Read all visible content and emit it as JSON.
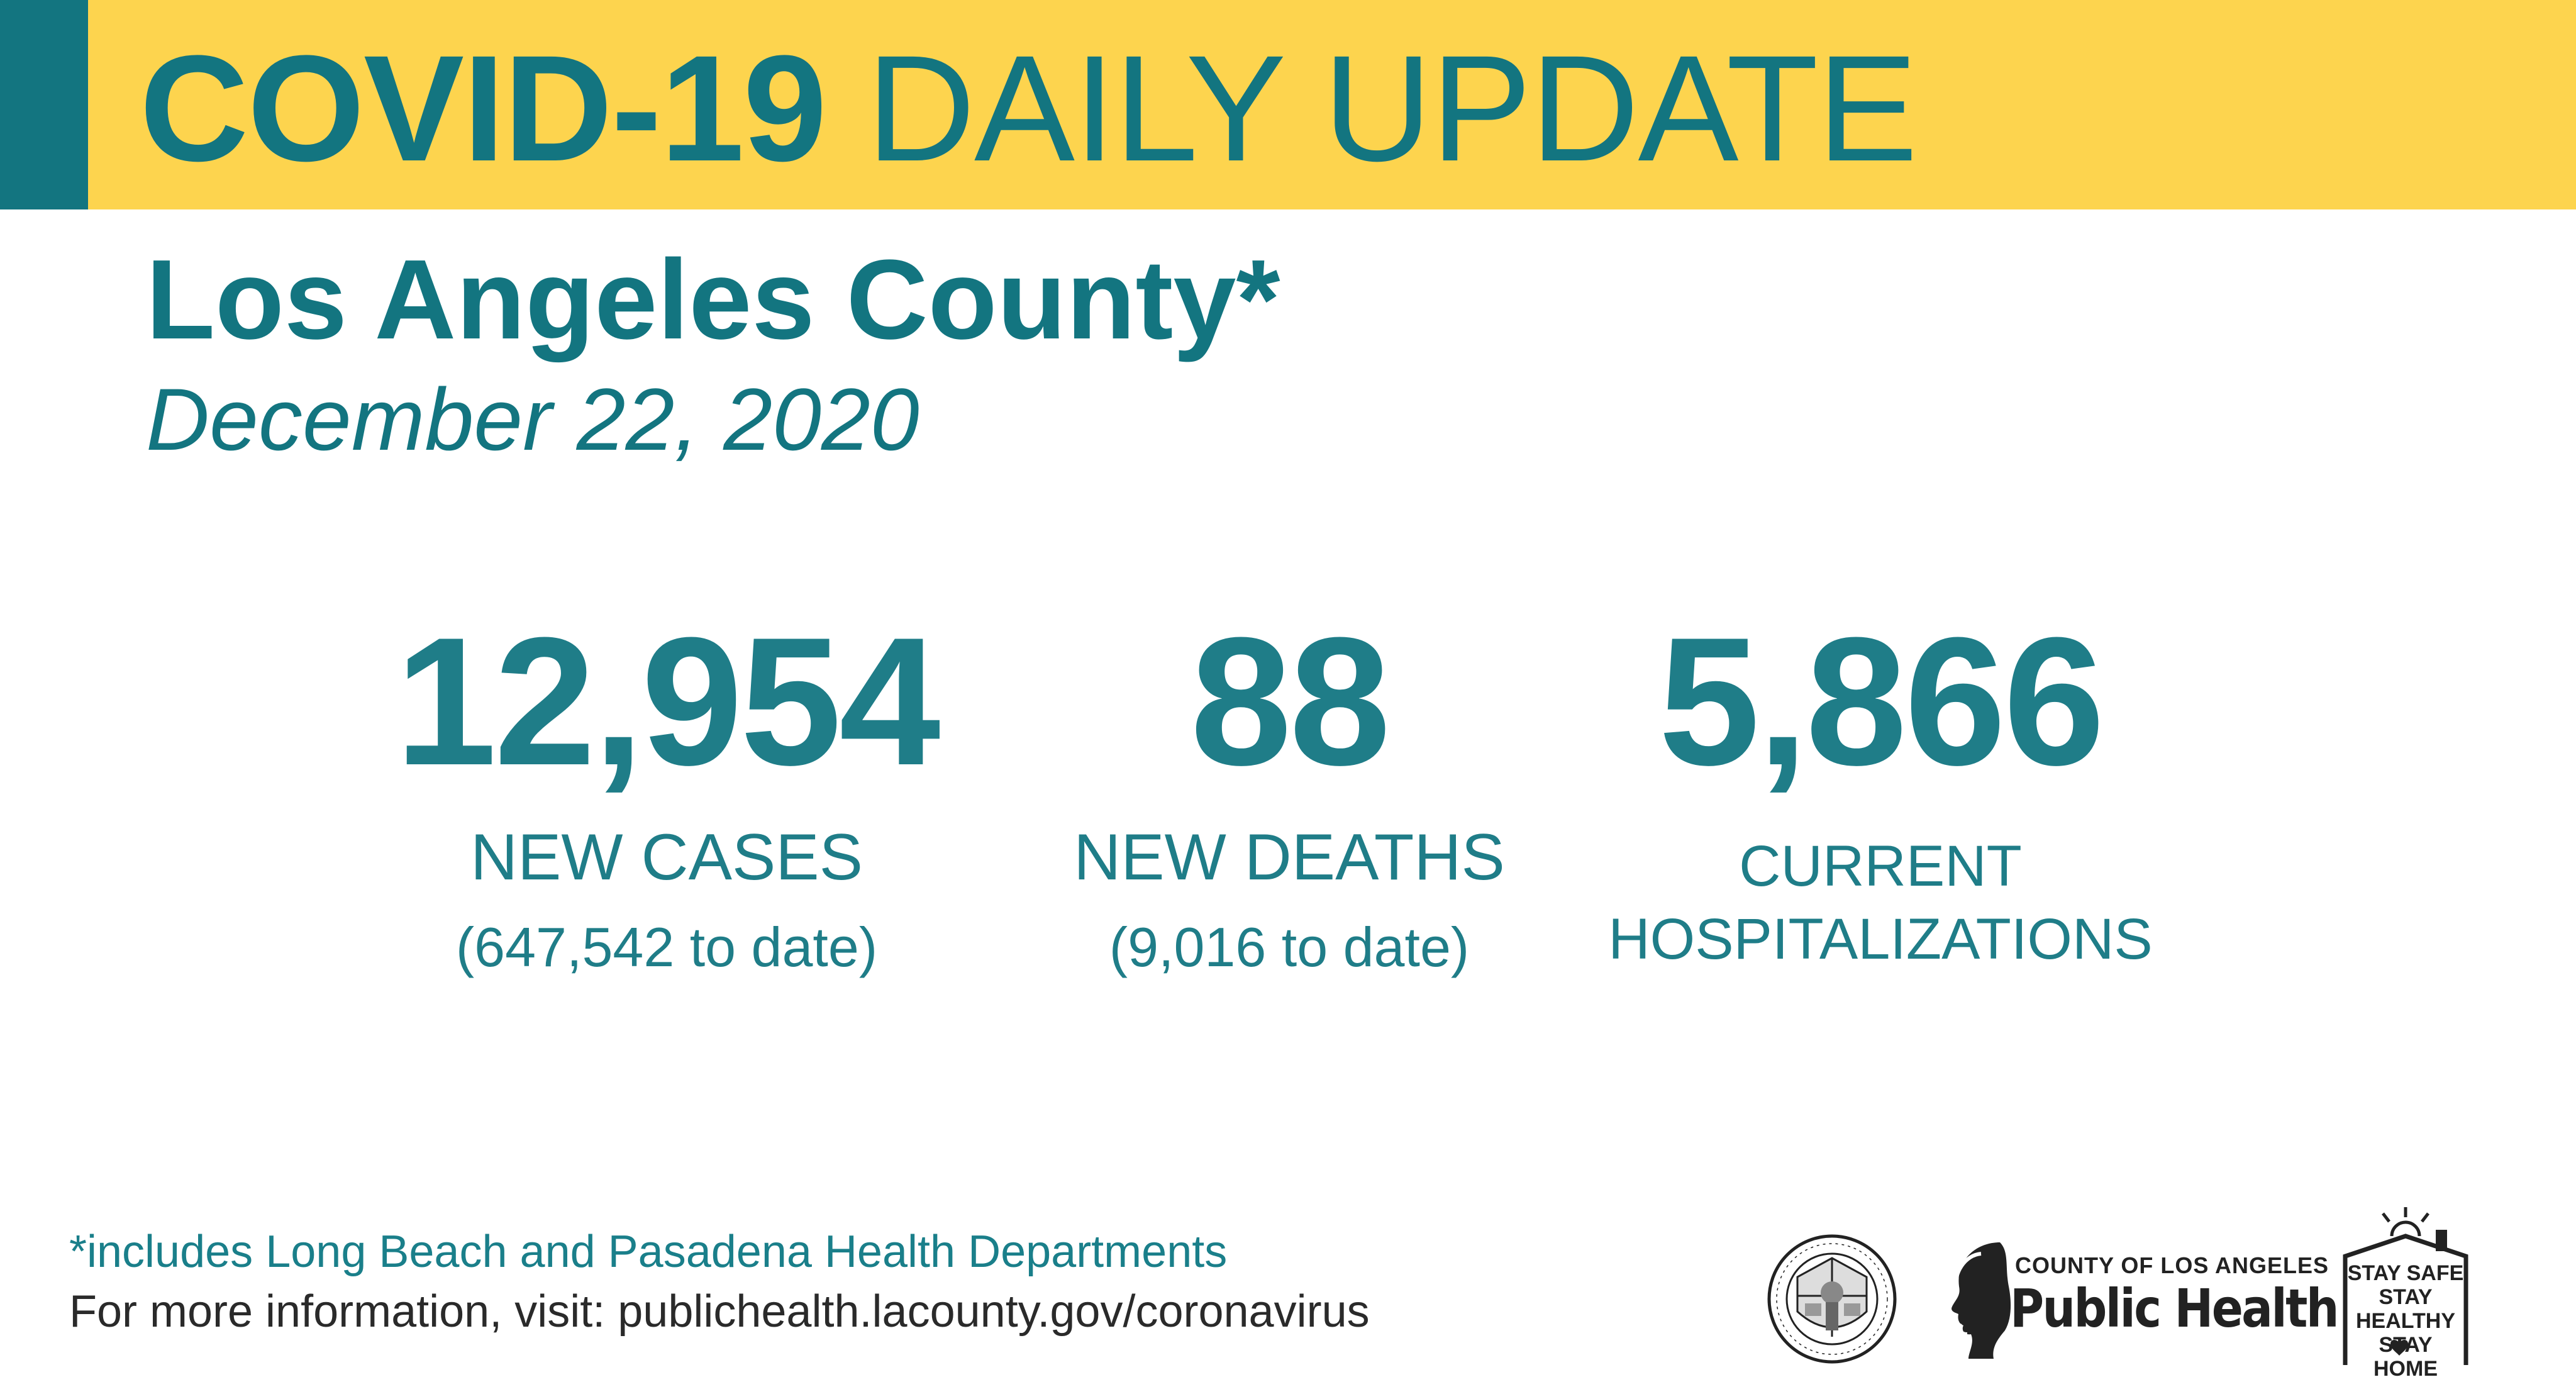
{
  "banner": {
    "title_bold": "COVID-19",
    "title_regular": "DAILY UPDATE",
    "colors": {
      "banner": "#fdd44e",
      "accent": "#137580",
      "text": "#137580"
    }
  },
  "header": {
    "county": "Los Angeles County*",
    "date": "December 22, 2020"
  },
  "stats": {
    "cases": {
      "value": "12,954",
      "label": "NEW CASES",
      "sub": "(647,542 to date)"
    },
    "deaths": {
      "value": "88",
      "label": "NEW DEATHS",
      "sub": "(9,016 to date)"
    },
    "hospitalizations": {
      "value": "5,866",
      "label_line1": "CURRENT",
      "label_line2": "HOSPITALIZATIONS"
    }
  },
  "footer": {
    "footnote": "*includes Long Beach and Pasadena Health Departments",
    "more_info": "For more information, visit: publichealth.lacounty.gov/coronavirus",
    "logos": {
      "seal_text_top": "COUNTY OF LOS ANGELES",
      "seal_text_bottom": "CALIFORNIA",
      "public_health_county": "COUNTY OF LOS ANGELES",
      "public_health_name": "Public Health",
      "stay_line1": "STAY SAFE",
      "stay_line2": "STAY HEALTHY",
      "stay_line3": "STAY HOME"
    }
  }
}
